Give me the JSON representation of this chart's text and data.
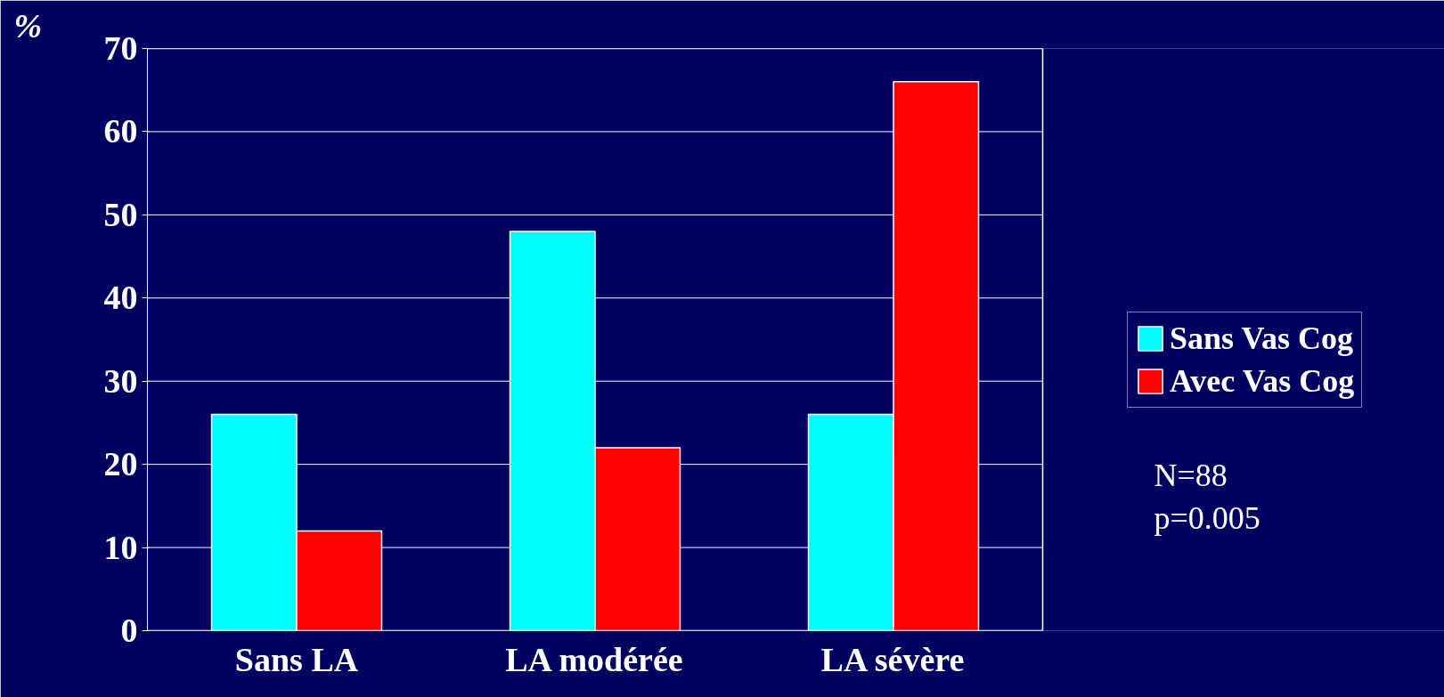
{
  "chart_data": {
    "type": "bar",
    "ylabel": "%",
    "categories": [
      "Sans LA",
      "LA modérée",
      "LA sévère"
    ],
    "series": [
      {
        "name": "Sans Vas Cog",
        "color": "#00ffff",
        "values": [
          26,
          48,
          26
        ]
      },
      {
        "name": "Avec Vas Cog",
        "color": "#ff0000",
        "values": [
          12,
          22,
          66
        ]
      }
    ],
    "ylim": [
      0,
      70
    ],
    "yticks": [
      0,
      10,
      20,
      30,
      40,
      50,
      60,
      70
    ],
    "grid": "y",
    "legend": "right",
    "annotations": [
      "N=88",
      "p=0.005"
    ]
  }
}
